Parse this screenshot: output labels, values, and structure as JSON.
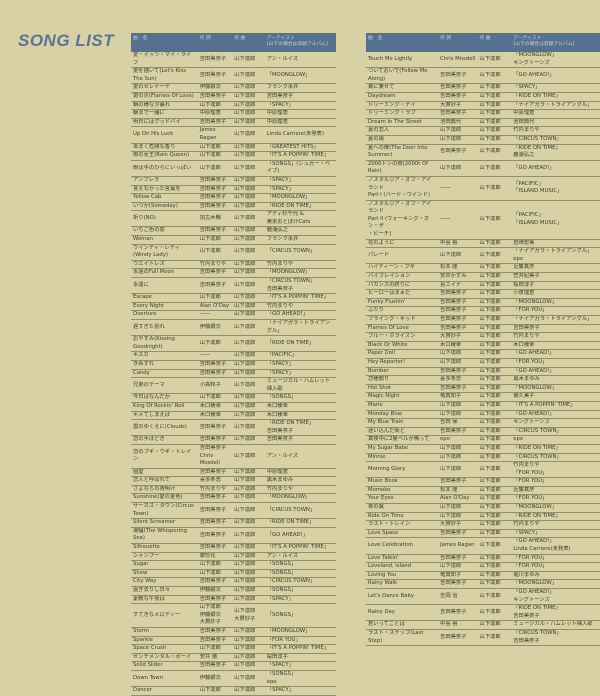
{
  "title": "SONG LIST",
  "colors": {
    "header": "#56708f",
    "title": "#5a7398",
    "background": "#d8d1a6"
  },
  "headers": [
    "曲　名",
    "作 詞",
    "作 曲",
    "アーティスト\n(山下の場合は収録アルバム)"
  ],
  "left_rows": [
    [
      "愛・イッツ・マイ・ライフ",
      "吉田美奈子",
      "山下達郎",
      "アン・ルイス"
    ],
    [
      "愛を描いて(Let's Kiss The Sun)",
      "吉田美奈子",
      "山下達郎",
      "「MOONGLOW」"
    ],
    [
      "愛のセレナーデ",
      "伊藤銀次",
      "山下達郎",
      "フランク永井"
    ],
    [
      "愛の炎(Flames Of Love)",
      "吉田美奈子",
      "山下達郎",
      "吉田美奈子"
    ],
    [
      "朝の様な夕暮れ",
      "山下達郎",
      "山下達郎",
      "「SPACY」"
    ],
    [
      "朝まで一緒に",
      "中原理恵",
      "山下達郎",
      "中原理恵"
    ],
    [
      "明日にはグッドバイ",
      "吉田美奈子",
      "山下達郎",
      "中原理恵"
    ],
    [
      "Up On His Luck",
      "James Ragan",
      "山下達郎",
      "Linda Carriere(未発表)"
    ],
    [
      "あまく危険な香り",
      "山下達郎",
      "山下達郎",
      "「GREATEST HITS」"
    ],
    [
      "雨の女王(Rain Queen)",
      "山下達郎",
      "山下達郎",
      "「IT'S A POPPIN' TIME」"
    ],
    [
      "雨は手のひらにいっぱい",
      "山下達郎",
      "山下達郎",
      "「SONGS」(シュガー・ベイブ)"
    ],
    [
      "アンブレラ",
      "吉田美奈子",
      "山下達郎",
      "「SPACY」"
    ],
    [
      "言えなかった言葉を",
      "吉田美奈子",
      "山下達郎",
      "「SPACY」"
    ],
    [
      "Yellow Cab",
      "吉田美奈子",
      "山下達郎",
      "「MOONGLOW」"
    ],
    [
      "いつか(Someday)",
      "吉田美奈子",
      "山下達郎",
      "「RIDE ON TIME」"
    ],
    [
      "祈り(NO)",
      "加古木暢",
      "山下達郎",
      "アディ杉千代 &\n東京おとぼけCats"
    ],
    [
      "いちご色の窓",
      "吉田美奈子",
      "山下達郎",
      "鹿浦弘之"
    ],
    [
      "Woman",
      "山下達郎",
      "山下達郎",
      "フランク永井"
    ],
    [
      "ウインディ・レディ(Windy Lady)",
      "山下達郎",
      "山下達郎",
      "「CIRCUS TOWN」"
    ],
    [
      "ウエイトレス",
      "竹内まりや",
      "山下達郎",
      "竹内まりや"
    ],
    [
      "永遠のFull Moon",
      "吉田美奈子",
      "山下達郎",
      "「MOONGLOW」"
    ],
    [
      "永遠に",
      "吉田美奈子",
      "山下達郎",
      "「CIRCUS TOWN」\n吉田美奈子"
    ],
    [
      "Escape",
      "山下達郎",
      "山下達郎",
      "「IT'S A POPPIN' TIME」"
    ],
    [
      "Every Night",
      "Alan O'Day",
      "山下達郎",
      "竹内まりや"
    ],
    [
      "Overture",
      "——",
      "山下達郎",
      "「GO AHEAD!」"
    ],
    [
      "遅すぎた別れ",
      "伊藤銀次",
      "山下達郎",
      "「ナイアガラ・トライアングル」"
    ],
    [
      "おやすみ(Kissing Goodnight)",
      "山下達郎",
      "山下達郎",
      "「RIDE ON TIME」"
    ],
    [
      "キスカ",
      "——",
      "山下達郎",
      "「PACIFIC」"
    ],
    [
      "きぬずれ",
      "吉田美奈子",
      "山下達郎",
      "「SPACY」"
    ],
    [
      "Candy",
      "吉田美奈子",
      "山下達郎",
      "「SPACY」"
    ],
    [
      "兄弟のテーマ",
      "小高和子",
      "山下達郎",
      "ミュージカル・ハムレット挿入歌"
    ],
    [
      "今日はなんだか",
      "山下達郎",
      "山下達郎",
      "「SONGS」"
    ],
    [
      "King Of Rockin' Roll",
      "木口稜幸",
      "山下達郎",
      "木口稜幸"
    ],
    [
      "キメてしまえば",
      "木口稜幸",
      "山下達郎",
      "木口稜幸"
    ],
    [
      "雲のゆくえに(Clouds)",
      "吉田美奈子",
      "山下達郎",
      "「RIDE ON TIME」\n吉田美奈子"
    ],
    [
      "恋の手ほどき",
      "吉田美奈子",
      "山下達郎",
      "吉田美奈子"
    ],
    [
      "恋のブギ・ウギ・トレイン",
      "吉田美奈子\nChris Mosdell",
      "山下達郎",
      "アン・ルイス"
    ],
    [
      "個室",
      "吉田美奈子",
      "山下達郎",
      "中原理恵"
    ],
    [
      "恋人と呼ばれて",
      "喜多条忠",
      "山下達郎",
      "黒木まゆみ"
    ],
    [
      "さよならの夜明け",
      "竹内まりや",
      "山下達郎",
      "竹内まりや"
    ],
    [
      "Sunshine(愛の金色)",
      "吉田美奈子",
      "山下達郎",
      "「MOONGLOW」"
    ],
    [
      "サーカス・タウン(Circus Town)",
      "吉田美奈子",
      "山下達郎",
      "「CIRCUS TOWN」"
    ],
    [
      "Silent Screamer",
      "吉田美奈子",
      "山下達郎",
      "「RIDE ON TIME」"
    ],
    [
      "潮騒(The Whispering Sea)",
      "吉田美奈子",
      "山下達郎",
      "「GO AHEAD!」"
    ],
    [
      "Silhouette",
      "吉田美奈子",
      "山下達郎",
      "「IT'S A POPPIN' TIME」"
    ],
    [
      "シャンプー",
      "康珍化",
      "山下達郎",
      "アン・ルイス"
    ],
    [
      "Sugar",
      "山下達郎",
      "山下達郎",
      "「SONGS」"
    ],
    [
      "Show",
      "山下達郎",
      "山下達郎",
      "「SONGS」"
    ],
    [
      "City Way",
      "吉田美奈子",
      "山下達郎",
      "「CIRCUS TOWN」"
    ],
    [
      "過ぎ去りし日々",
      "伊藤銀次",
      "山下達郎",
      "「SONGS」"
    ],
    [
      "素敵な午後は",
      "吉田美奈子",
      "山下達郎",
      "「SPACY」"
    ],
    [
      "すてきなメロディー",
      "山下達郎\n伊藤銀次\n大貫妙子",
      "山下達郎\n大貫妙子",
      "「SONGS」"
    ],
    [
      "Storm",
      "吉田美奈子",
      "山下達郎",
      "「MOONGLOW」"
    ],
    [
      "Sparkle",
      "吉田美奈子",
      "山下達郎",
      "「FOR YOU」"
    ],
    [
      "Space Crush",
      "山下達郎",
      "山下達郎",
      "「IT'S A POPPIN' TIME」"
    ],
    [
      "センチメンタル・ボーイ",
      "安井 徹",
      "山下達郎",
      "桜田淳子"
    ],
    [
      "Solid Slider",
      "吉田美奈子",
      "山下達郎",
      "「SPACY」"
    ],
    [
      "Down Town",
      "伊藤銀次",
      "山下達郎",
      "「SONGS」\nepo"
    ],
    [
      "Dancer",
      "山下達郎",
      "山下達郎",
      "「SPACY」"
    ]
  ],
  "right_rows": [
    [
      "Touch Me Lightly",
      "Chris Mosdell",
      "山下達郎",
      "「MOONGLOW」\nキングトーンズ"
    ],
    [
      "ついておいで(Follow Me Along)",
      "吉田美奈子",
      "山下達郎",
      "「GO AHEAD!」"
    ],
    [
      "翼に乗せて",
      "吉田美奈子",
      "山下達郎",
      "「SPACY」"
    ],
    [
      "Daydream",
      "吉田美奈子",
      "山下達郎",
      "「RIDE ON TIME」"
    ],
    [
      "ドリーミング・デイ",
      "大貫妙子",
      "山下達郎",
      "「ナイアガラ・トライアングル」"
    ],
    [
      "ドリーミング・ラブ",
      "吉田美奈子",
      "山下達郎",
      "中原理恵"
    ],
    [
      "Dream In The Street",
      "池田典代",
      "山下達郎",
      "池田典代"
    ],
    [
      "夏の恋人",
      "山下達郎",
      "山下達郎",
      "竹内まりや"
    ],
    [
      "夏の陽",
      "山下達郎",
      "山下達郎",
      "「CIRCUS TOWN」"
    ],
    [
      "夏への扉(The Door Into Summer)",
      "吉田美奈子",
      "山下達郎",
      "「RIDE ON TIME」\n鹿浦弘之"
    ],
    [
      "2000トンの雨(2000t Of Rain)",
      "山下達郎",
      "山下達郎",
      "「GO AHEAD!」"
    ],
    [
      "ノスタルジア・オブ・アイランド\nPart I (バード・ウインド)",
      "——",
      "山下達郎",
      "「PACIFIC」\n「ISLAND MUSIC」"
    ],
    [
      "ノスタルジア・オブ・アイランド\nPart II (ウォーキング・オン・ザ\n・ビーチ)",
      "——",
      "山下達郎",
      "「PACIFIC」\n「ISLAND MUSIC」"
    ],
    [
      "花のように",
      "中島 裕",
      "山下達郎",
      "岩崎宏美"
    ],
    [
      "パレード",
      "山下達郎",
      "山下達郎",
      "「ナイアガラ・トライアングル」\nepo"
    ],
    [
      "ハイティーン・ブギ",
      "松本 隆",
      "山下達郎",
      "近藤真彦"
    ],
    [
      "バイブレイション",
      "安井かずみ",
      "山下達郎",
      "笠井紀美子"
    ],
    [
      "バカンスの終りに",
      "島エイナ",
      "山下達郎",
      "桜田淳子"
    ],
    [
      "ヒーローはまぁだ",
      "吉田美奈子",
      "山下達郎",
      "小泉理恵"
    ],
    [
      "Funky Flushin'",
      "吉田美奈子",
      "山下達郎",
      "「MOONGLOW」"
    ],
    [
      "ふたり",
      "吉田美奈子",
      "山下達郎",
      "「FOR YOU」"
    ],
    [
      "ブライング・キッド",
      "吉田美奈子",
      "山下達郎",
      "「ナイアガラ・トライアングル」"
    ],
    [
      "Flames Of Love",
      "吉田美奈子",
      "山下達郎",
      "吉田美奈子"
    ],
    [
      "ブルー・ホライズン",
      "大貫妙子",
      "山下達郎",
      "竹内まりや"
    ],
    [
      "Black Or White",
      "木口稜幸",
      "山下達郎",
      "木口稜幸"
    ],
    [
      "Paper Doll",
      "山下達郎",
      "山下達郎",
      "「GO AHEAD!」"
    ],
    [
      "Hey Reporter!",
      "山下達郎",
      "山下達郎",
      "「FOR YOU」"
    ],
    [
      "Bomber",
      "吉田美奈子",
      "山下達郎",
      "「GO AHEAD!」"
    ],
    [
      "恋種闇り",
      "喜多条忠",
      "山下達郎",
      "黒木まゆみ"
    ],
    [
      "Hot Shot",
      "吉田美奈子",
      "山下達郎",
      "「MOONGLOW」"
    ],
    [
      "Magic Night",
      "竜真知子",
      "山下達郎",
      "南久美子"
    ],
    [
      "Marie",
      "山下達郎",
      "山下達郎",
      "「IT'S A POPPIN' TIME」"
    ],
    [
      "Monday Blue",
      "山下達郎",
      "山下達郎",
      "「GO AHEAD!」"
    ],
    [
      "My Blue Train",
      "吉田 保",
      "山下達郎",
      "キングトーンズ"
    ],
    [
      "迷い込んだ街と",
      "吉田美奈子",
      "山下達郎",
      "「CIRCUS TOWN」"
    ],
    [
      "真夜中に2度ベルが鳴って",
      "epo",
      "山下達郎",
      "epo"
    ],
    [
      "My Sugar Babe",
      "山下達郎",
      "山下達郎",
      "「RIDE ON TIME」"
    ],
    [
      "Minnie",
      "山下達郎",
      "山下達郎",
      "「CIRCUS TOWN」"
    ],
    [
      "Morning Glory",
      "山下達郎",
      "山下達郎",
      "竹内まりや\n「FOR YOU」"
    ],
    [
      "Music Book",
      "吉田美奈子",
      "山下達郎",
      "「FOR YOU」"
    ],
    [
      "Momoko",
      "松本 隆",
      "山下達郎",
      "近藤真彦"
    ],
    [
      "Your Eyes",
      "Alan O'Day",
      "山下達郎",
      "「FOR YOU」"
    ],
    [
      "夜の翼",
      "山下達郎",
      "山下達郎",
      "「MOONGLOW」"
    ],
    [
      "Ride On Time",
      "山下達郎",
      "山下達郎",
      "「RIDE ON TIME」"
    ],
    [
      "ラスト・トレイン",
      "大貫妙子",
      "山下達郎",
      "竹内まりや"
    ],
    [
      "Love Space",
      "吉田美奈子",
      "山下達郎",
      "「SPACY」"
    ],
    [
      "Love Celebration",
      "James Ragan",
      "山下達郎",
      "「GO AHEAD!」\nLinda Carriere(未発表)"
    ],
    [
      "Love Talkin'",
      "吉田美奈子",
      "山下達郎",
      "「FOR YOU」"
    ],
    [
      "Loveland, Island",
      "山下達郎",
      "山下達郎",
      "「FOR YOU」"
    ],
    [
      "Loving You",
      "竜真知子",
      "山下達郎",
      "堀川まゆみ"
    ],
    [
      "Rainy Walk",
      "吉田美奈子",
      "山下達郎",
      "「MOONGLOW」"
    ],
    [
      "Let's Dance Baby",
      "吉岡 治",
      "山下達郎",
      "「GO AHEAD!」\nキングトーンズ"
    ],
    [
      "Rainy Day",
      "吉田美奈子",
      "山下達郎",
      "「RIDE ON TIME」\n吉田美奈子"
    ],
    [
      "若いってことは",
      "中島 裕",
      "山下達郎",
      "ミュージカル・ハムレット挿入歌"
    ],
    [
      "ラスト・ステップ(Last Step)",
      "吉田美奈子",
      "山下達郎",
      "「CIRCUS TOWN」\n吉田美奈子"
    ]
  ]
}
